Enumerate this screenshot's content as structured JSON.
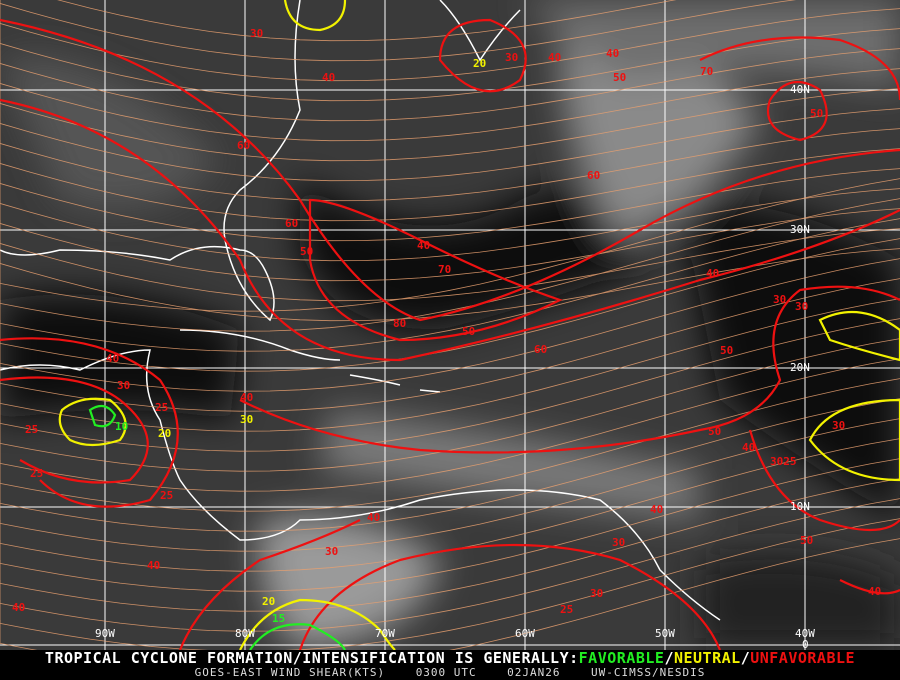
{
  "header_text": {
    "prefix": "TROPICAL CYCLONE FORMATION/INTENSIFICATION IS GENERALLY:",
    "favorable": "FAVORABLE",
    "sep1": "/",
    "neutral": "NEUTRAL",
    "sep2": "/",
    "unfavorable": "UNFAVORABLE"
  },
  "caption": {
    "product": "GOES-EAST WIND SHEAR(KTS)",
    "time": "0300 UTC",
    "date": "02JAN26",
    "source": "UW-CIMSS/NESDIS"
  },
  "grid_labels": {
    "lon": [
      "90W",
      "80W",
      "70W",
      "60W",
      "50W",
      "40W"
    ],
    "lat": [
      "40N",
      "30N",
      "20N",
      "10N",
      "0"
    ]
  },
  "contour_labels": [
    "30",
    "40",
    "20",
    "30",
    "40",
    "40",
    "50",
    "70",
    "50",
    "60",
    "60",
    "60",
    "40",
    "50",
    "70",
    "80",
    "50",
    "60",
    "40",
    "30",
    "25",
    "40",
    "30",
    "25",
    "20",
    "10",
    "25",
    "25",
    "30",
    "30",
    "40",
    "40",
    "30",
    "20",
    "15",
    "40",
    "40",
    "50",
    "30",
    "30",
    "40",
    "25",
    "30",
    "40",
    "50",
    "40",
    "3025",
    "50"
  ],
  "colors": {
    "favorable": "#22ee22",
    "neutral": "#f2f200",
    "unfavorable": "#ee1111",
    "streamline": "#e8a070",
    "coastline": "#ffffff",
    "grid": "#ffffff"
  }
}
